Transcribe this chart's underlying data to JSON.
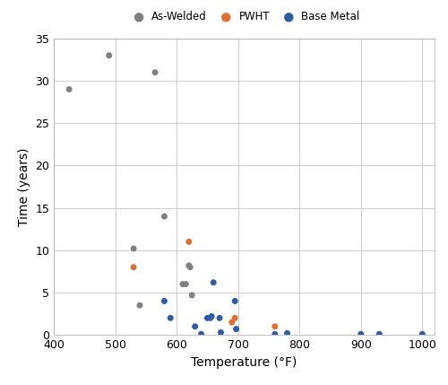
{
  "as_welded": {
    "x": [
      425,
      490,
      565,
      580,
      530,
      610,
      615,
      620,
      622,
      625,
      540
    ],
    "y": [
      29,
      33,
      31,
      14,
      10.2,
      6,
      6,
      8.2,
      8.0,
      4.7,
      3.5
    ],
    "color": "#808080",
    "label": "As-Welded",
    "size": 25,
    "zorder": 3
  },
  "pwht": {
    "x": [
      530,
      620,
      690,
      695,
      760
    ],
    "y": [
      8.0,
      11,
      1.5,
      2.0,
      1.0
    ],
    "color": "#E07030",
    "label": "PWHT",
    "size": 25,
    "zorder": 4
  },
  "base_metal": {
    "x": [
      580,
      590,
      630,
      640,
      650,
      655,
      657,
      660,
      670,
      672,
      695,
      697,
      760,
      780,
      900,
      930,
      1000
    ],
    "y": [
      4.0,
      2.0,
      1.0,
      0.1,
      2.0,
      2.0,
      2.2,
      6.2,
      2.0,
      0.3,
      4.0,
      0.7,
      0.1,
      0.2,
      0.1,
      0.1,
      0.1
    ],
    "color": "#2E5DA8",
    "label": "Base Metal",
    "size": 25,
    "zorder": 2
  },
  "xlabel": "Temperature (°F)",
  "ylabel": "Time (years)",
  "xlim": [
    400,
    1020
  ],
  "ylim": [
    0,
    35
  ],
  "xticks": [
    400,
    500,
    600,
    700,
    800,
    900,
    1000
  ],
  "yticks": [
    0,
    5,
    10,
    15,
    20,
    25,
    30,
    35
  ],
  "grid_color": "#D0D0D0",
  "bg_color": "#FFFFFF",
  "plot_bg_color": "#FFFFFF",
  "tick_fontsize": 9,
  "label_fontsize": 10
}
